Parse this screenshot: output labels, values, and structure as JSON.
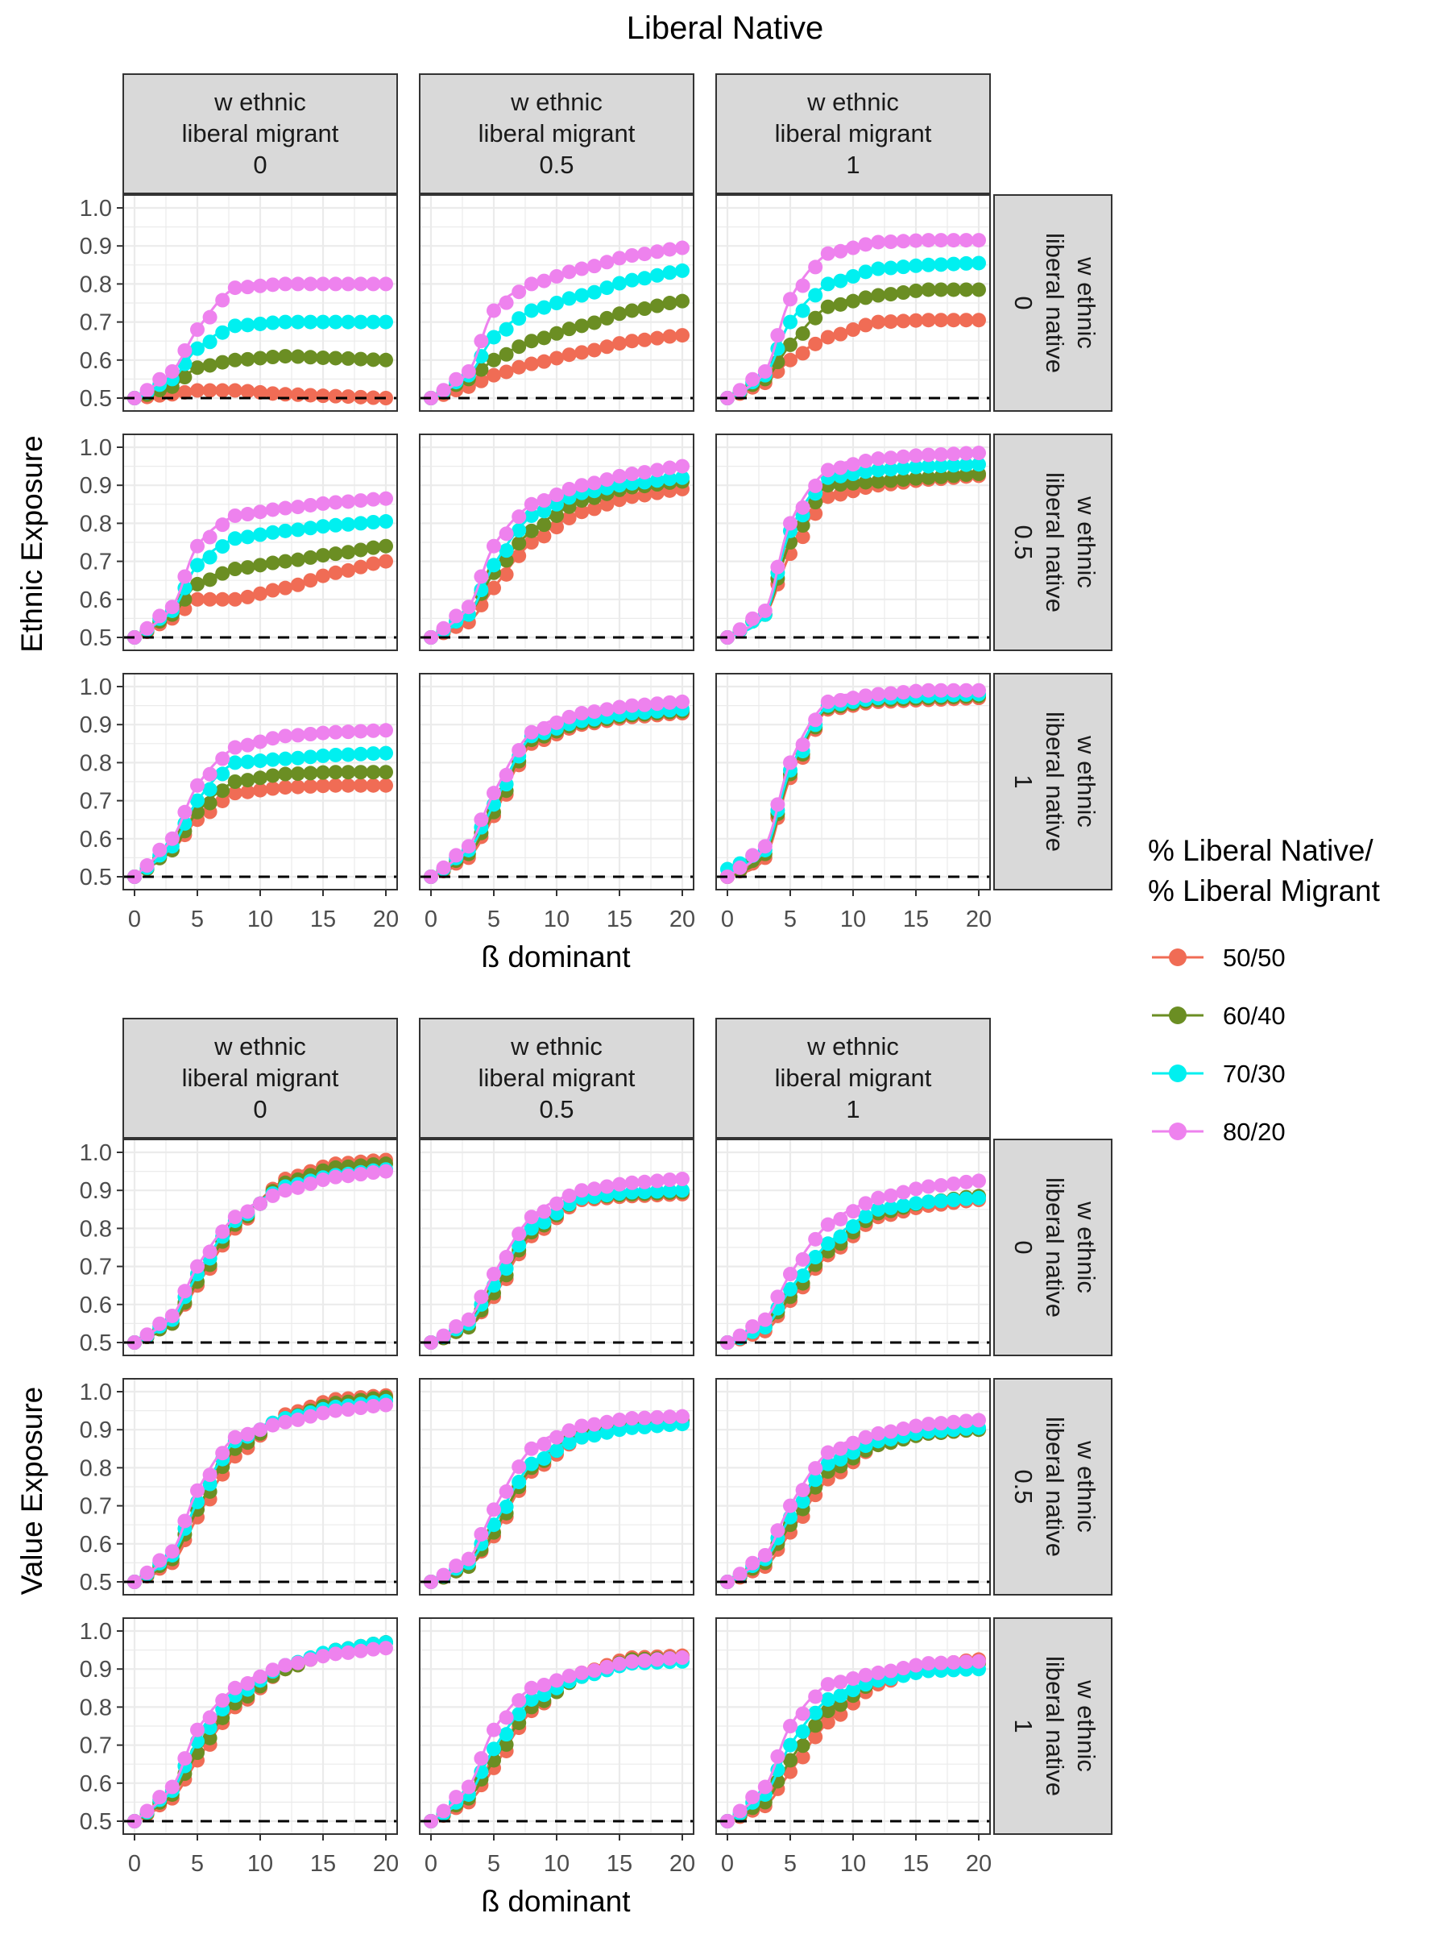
{
  "title": "Liberal Native",
  "colors": {
    "50/50": "#F06C55",
    "60/40": "#6B8E23",
    "70/30": "#00F0F0",
    "80/20": "#EE82EE",
    "strip_fill": "#D9D9D9",
    "grid": "#EBEBEB"
  },
  "legend": {
    "title_line1": "% Liberal Native/",
    "title_line2": "% Liberal Migrant",
    "entries": [
      "50/50",
      "60/40",
      "70/30",
      "80/20"
    ],
    "position": "right"
  },
  "chart_data": [
    {
      "type": "line",
      "ylabel": "Ethnic Exposure",
      "xlabel": "ß dominant",
      "xlim": [
        0,
        20
      ],
      "ylim": [
        0.5,
        1.0
      ],
      "x_ticks": [
        0,
        5,
        10,
        15,
        20
      ],
      "y_ticks": [
        "0.5",
        "0.6",
        "0.7",
        "0.8",
        "0.9",
        "1.0"
      ],
      "reference_line_y": 0.5,
      "col_strips": [
        [
          "w ethnic",
          "liberal migrant",
          "0"
        ],
        [
          "w ethnic",
          "liberal migrant",
          "0.5"
        ],
        [
          "w ethnic",
          "liberal migrant",
          "1"
        ]
      ],
      "row_strips": [
        [
          "w ethnic",
          "liberal native",
          "0"
        ],
        [
          "w ethnic",
          "liberal native",
          "0.5"
        ],
        [
          "w ethnic",
          "liberal native",
          "1"
        ]
      ],
      "panels": [
        [
          {
            "50/50": [
              0.5,
              0.51,
              0.52,
              0.52,
              0.51,
              0.505,
              0.5
            ],
            "60/40": [
              0.5,
              0.53,
              0.58,
              0.6,
              0.61,
              0.605,
              0.6
            ],
            "70/30": [
              0.5,
              0.55,
              0.63,
              0.69,
              0.7,
              0.7,
              0.7
            ],
            "80/20": [
              0.5,
              0.57,
              0.68,
              0.79,
              0.8,
              0.8,
              0.8
            ]
          },
          {
            "50/50": [
              0.5,
              0.53,
              0.56,
              0.59,
              0.62,
              0.65,
              0.665
            ],
            "60/40": [
              0.5,
              0.55,
              0.6,
              0.65,
              0.69,
              0.73,
              0.755
            ],
            "70/30": [
              0.5,
              0.56,
              0.66,
              0.73,
              0.77,
              0.81,
              0.835
            ],
            "80/20": [
              0.5,
              0.57,
              0.73,
              0.8,
              0.84,
              0.875,
              0.895
            ]
          },
          {
            "50/50": [
              0.5,
              0.54,
              0.6,
              0.66,
              0.7,
              0.705,
              0.705
            ],
            "60/40": [
              0.5,
              0.55,
              0.64,
              0.74,
              0.77,
              0.785,
              0.785
            ],
            "70/30": [
              0.5,
              0.56,
              0.7,
              0.8,
              0.84,
              0.85,
              0.855
            ],
            "80/20": [
              0.5,
              0.57,
              0.76,
              0.88,
              0.91,
              0.915,
              0.915
            ]
          }
        ],
        [
          {
            "50/50": [
              0.5,
              0.55,
              0.6,
              0.6,
              0.63,
              0.67,
              0.7
            ],
            "60/40": [
              0.5,
              0.56,
              0.64,
              0.68,
              0.7,
              0.72,
              0.74
            ],
            "70/30": [
              0.5,
              0.57,
              0.69,
              0.76,
              0.78,
              0.795,
              0.805
            ],
            "80/20": [
              0.5,
              0.58,
              0.74,
              0.82,
              0.84,
              0.855,
              0.865
            ]
          },
          {
            "50/50": [
              0.5,
              0.54,
              0.63,
              0.75,
              0.83,
              0.87,
              0.89
            ],
            "60/40": [
              0.5,
              0.56,
              0.67,
              0.78,
              0.86,
              0.895,
              0.91
            ],
            "70/30": [
              0.5,
              0.56,
              0.69,
              0.82,
              0.88,
              0.905,
              0.92
            ],
            "80/20": [
              0.5,
              0.58,
              0.74,
              0.85,
              0.9,
              0.93,
              0.95
            ]
          },
          {
            "50/50": [
              0.5,
              0.56,
              0.72,
              0.87,
              0.9,
              0.915,
              0.925
            ],
            "60/40": [
              0.5,
              0.56,
              0.75,
              0.9,
              0.91,
              0.92,
              0.93
            ],
            "70/30": [
              0.5,
              0.56,
              0.78,
              0.92,
              0.94,
              0.95,
              0.955
            ],
            "80/20": [
              0.5,
              0.57,
              0.8,
              0.94,
              0.97,
              0.98,
              0.985
            ]
          }
        ],
        [
          {
            "50/50": [
              0.5,
              0.57,
              0.65,
              0.72,
              0.735,
              0.74,
              0.74
            ],
            "60/40": [
              0.5,
              0.57,
              0.67,
              0.75,
              0.77,
              0.775,
              0.775
            ],
            "70/30": [
              0.5,
              0.58,
              0.7,
              0.8,
              0.81,
              0.82,
              0.825
            ],
            "80/20": [
              0.5,
              0.6,
              0.74,
              0.84,
              0.87,
              0.88,
              0.885
            ]
          },
          {
            "50/50": [
              0.5,
              0.55,
              0.66,
              0.85,
              0.9,
              0.92,
              0.93
            ],
            "60/40": [
              0.5,
              0.56,
              0.67,
              0.86,
              0.905,
              0.925,
              0.935
            ],
            "70/30": [
              0.5,
              0.57,
              0.69,
              0.87,
              0.91,
              0.93,
              0.94
            ],
            "80/20": [
              0.5,
              0.58,
              0.72,
              0.88,
              0.93,
              0.95,
              0.96
            ]
          },
          {
            "50/50": [
              0.5,
              0.55,
              0.76,
              0.94,
              0.96,
              0.965,
              0.97
            ],
            "60/40": [
              0.5,
              0.56,
              0.77,
              0.945,
              0.965,
              0.97,
              0.975
            ],
            "70/30": [
              0.52,
              0.57,
              0.78,
              0.95,
              0.97,
              0.975,
              0.98
            ],
            "80/20": [
              0.5,
              0.58,
              0.8,
              0.96,
              0.98,
              0.99,
              0.99
            ]
          }
        ]
      ]
    },
    {
      "type": "line",
      "ylabel": "Value Exposure",
      "xlabel": "ß dominant",
      "xlim": [
        0,
        20
      ],
      "ylim": [
        0.5,
        1.0
      ],
      "x_ticks": [
        0,
        5,
        10,
        15,
        20
      ],
      "y_ticks": [
        "0.5",
        "0.6",
        "0.7",
        "0.8",
        "0.9",
        "1.0"
      ],
      "reference_line_y": 0.5,
      "col_strips": [
        [
          "w ethnic",
          "liberal migrant",
          "0"
        ],
        [
          "w ethnic",
          "liberal migrant",
          "0.5"
        ],
        [
          "w ethnic",
          "liberal migrant",
          "1"
        ]
      ],
      "row_strips": [
        [
          "w ethnic",
          "liberal native",
          "0"
        ],
        [
          "w ethnic",
          "liberal native",
          "0.5"
        ],
        [
          "w ethnic",
          "liberal native",
          "1"
        ]
      ],
      "panels": [
        [
          {
            "50/50": [
              0.5,
              0.55,
              0.65,
              0.8,
              0.93,
              0.97,
              0.98
            ],
            "60/40": [
              0.5,
              0.55,
              0.66,
              0.81,
              0.92,
              0.96,
              0.97
            ],
            "70/30": [
              0.5,
              0.56,
              0.68,
              0.82,
              0.91,
              0.94,
              0.955
            ],
            "80/20": [
              0.5,
              0.57,
              0.7,
              0.83,
              0.9,
              0.935,
              0.95
            ]
          },
          {
            "50/50": [
              0.5,
              0.54,
              0.62,
              0.78,
              0.875,
              0.885,
              0.89
            ],
            "60/40": [
              0.5,
              0.54,
              0.63,
              0.79,
              0.88,
              0.89,
              0.895
            ],
            "70/30": [
              0.5,
              0.55,
              0.65,
              0.8,
              0.88,
              0.895,
              0.9
            ],
            "80/20": [
              0.5,
              0.56,
              0.68,
              0.83,
              0.9,
              0.92,
              0.93
            ]
          },
          {
            "50/50": [
              0.5,
              0.53,
              0.61,
              0.73,
              0.83,
              0.86,
              0.875
            ],
            "60/40": [
              0.5,
              0.54,
              0.62,
              0.74,
              0.84,
              0.87,
              0.885
            ],
            "70/30": [
              0.5,
              0.54,
              0.64,
              0.76,
              0.85,
              0.87,
              0.88
            ],
            "80/20": [
              0.5,
              0.56,
              0.68,
              0.81,
              0.88,
              0.91,
              0.925
            ]
          }
        ],
        [
          {
            "50/50": [
              0.5,
              0.55,
              0.67,
              0.83,
              0.94,
              0.98,
              0.99
            ],
            "60/40": [
              0.5,
              0.56,
              0.69,
              0.85,
              0.93,
              0.97,
              0.985
            ],
            "70/30": [
              0.5,
              0.57,
              0.71,
              0.87,
              0.93,
              0.96,
              0.975
            ],
            "80/20": [
              0.5,
              0.58,
              0.74,
              0.88,
              0.92,
              0.95,
              0.965
            ]
          },
          {
            "50/50": [
              0.5,
              0.54,
              0.62,
              0.79,
              0.88,
              0.91,
              0.92
            ],
            "60/40": [
              0.5,
              0.54,
              0.63,
              0.8,
              0.89,
              0.915,
              0.925
            ],
            "70/30": [
              0.5,
              0.55,
              0.65,
              0.81,
              0.88,
              0.905,
              0.915
            ],
            "80/20": [
              0.5,
              0.56,
              0.69,
              0.85,
              0.91,
              0.93,
              0.935
            ]
          },
          {
            "50/50": [
              0.5,
              0.54,
              0.63,
              0.77,
              0.86,
              0.89,
              0.9
            ],
            "60/40": [
              0.5,
              0.55,
              0.65,
              0.79,
              0.86,
              0.89,
              0.9
            ],
            "70/30": [
              0.5,
              0.56,
              0.67,
              0.81,
              0.87,
              0.895,
              0.905
            ],
            "80/20": [
              0.5,
              0.57,
              0.7,
              0.84,
              0.89,
              0.915,
              0.925
            ]
          }
        ],
        [
          {
            "50/50": [
              0.5,
              0.56,
              0.66,
              0.8,
              0.9,
              0.95,
              0.97
            ],
            "60/40": [
              0.5,
              0.57,
              0.68,
              0.81,
              0.9,
              0.95,
              0.97
            ],
            "70/30": [
              0.5,
              0.58,
              0.71,
              0.83,
              0.91,
              0.95,
              0.97
            ],
            "80/20": [
              0.5,
              0.59,
              0.74,
              0.85,
              0.91,
              0.94,
              0.955
            ]
          },
          {
            "50/50": [
              0.5,
              0.55,
              0.64,
              0.79,
              0.89,
              0.93,
              0.935
            ],
            "60/40": [
              0.5,
              0.56,
              0.66,
              0.8,
              0.88,
              0.925,
              0.93
            ],
            "70/30": [
              0.5,
              0.57,
              0.69,
              0.82,
              0.88,
              0.915,
              0.92
            ],
            "80/20": [
              0.5,
              0.59,
              0.74,
              0.85,
              0.89,
              0.92,
              0.93
            ]
          },
          {
            "50/50": [
              0.5,
              0.54,
              0.63,
              0.76,
              0.86,
              0.91,
              0.925
            ],
            "60/40": [
              0.5,
              0.55,
              0.66,
              0.79,
              0.87,
              0.9,
              0.915
            ],
            "70/30": [
              0.5,
              0.57,
              0.7,
              0.82,
              0.87,
              0.895,
              0.9
            ],
            "80/20": [
              0.5,
              0.59,
              0.75,
              0.86,
              0.89,
              0.915,
              0.92
            ]
          }
        ]
      ]
    }
  ]
}
